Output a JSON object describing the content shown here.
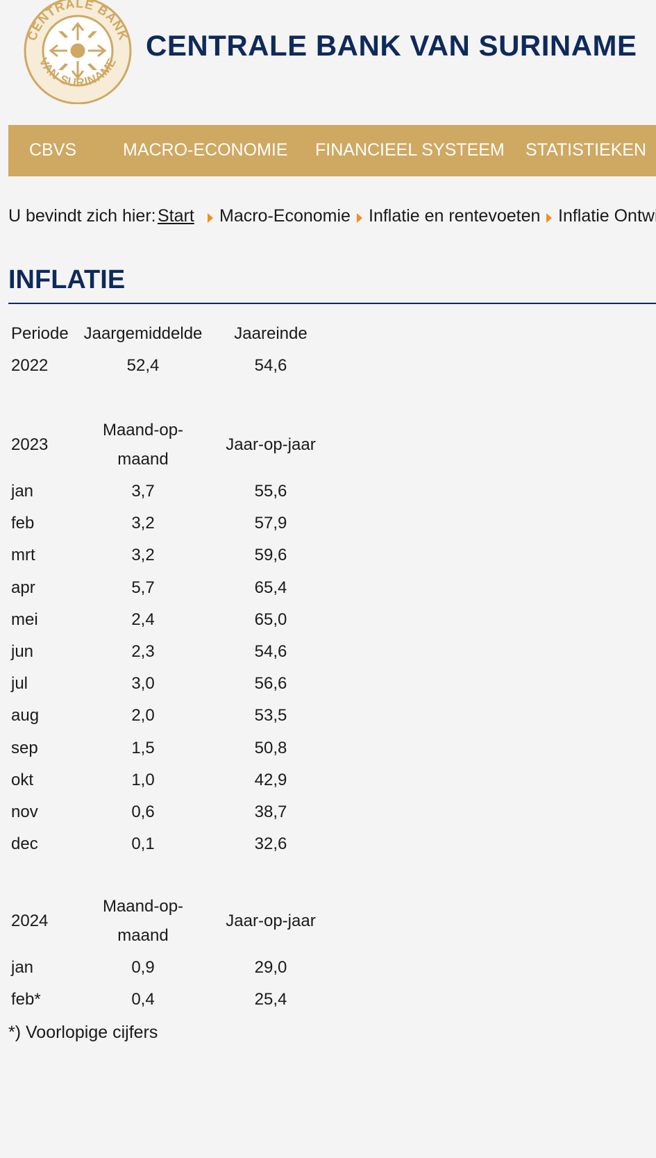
{
  "header": {
    "logo_text_top": "CENTRALE BANK",
    "logo_text_bottom": "VAN SURINAME",
    "title": "CENTRALE BANK VAN SURINAME"
  },
  "nav": {
    "items": [
      "CBVS",
      "MACRO-ECONOMIE",
      "FINANCIEEL SYSTEEM",
      "STATISTIEKEN"
    ]
  },
  "breadcrumb": {
    "prefix": "U bevindt zich hier:",
    "items": [
      "Start",
      "Macro-Economie",
      "Inflatie en rentevoeten",
      "Inflatie Ontwi"
    ]
  },
  "page_title": "INFLATIE",
  "table": {
    "header_2022": [
      "Periode",
      "Jaargemiddelde",
      "Jaareinde"
    ],
    "row_2022": [
      "2022",
      "52,4",
      "54,6"
    ],
    "section_2023": {
      "year": "2023",
      "col2": "Maand-op-maand",
      "col3": "Jaar-op-jaar",
      "rows": [
        [
          "jan",
          "3,7",
          "55,6"
        ],
        [
          "feb",
          "3,2",
          "57,9"
        ],
        [
          "mrt",
          "3,2",
          "59,6"
        ],
        [
          "apr",
          "5,7",
          "65,4"
        ],
        [
          "mei",
          "2,4",
          "65,0"
        ],
        [
          "jun",
          "2,3",
          "54,6"
        ],
        [
          "jul",
          "3,0",
          "56,6"
        ],
        [
          "aug",
          "2,0",
          "53,5"
        ],
        [
          "sep",
          "1,5",
          "50,8"
        ],
        [
          "okt",
          "1,0",
          "42,9"
        ],
        [
          "nov",
          "0,6",
          "38,7"
        ],
        [
          "dec",
          "0,1",
          "32,6"
        ]
      ]
    },
    "section_2024": {
      "year": "2024",
      "col2": "Maand-op-maand",
      "col3": "Jaar-op-jaar",
      "rows": [
        [
          "jan",
          "0,9",
          "29,0"
        ],
        [
          "feb*",
          "0,4",
          "25,4"
        ]
      ]
    }
  },
  "footnote": "*) Voorlopige cijfers",
  "colors": {
    "brand_navy": "#0e2a5a",
    "nav_gold": "#cfa862",
    "arrow_orange": "#f0901e"
  }
}
